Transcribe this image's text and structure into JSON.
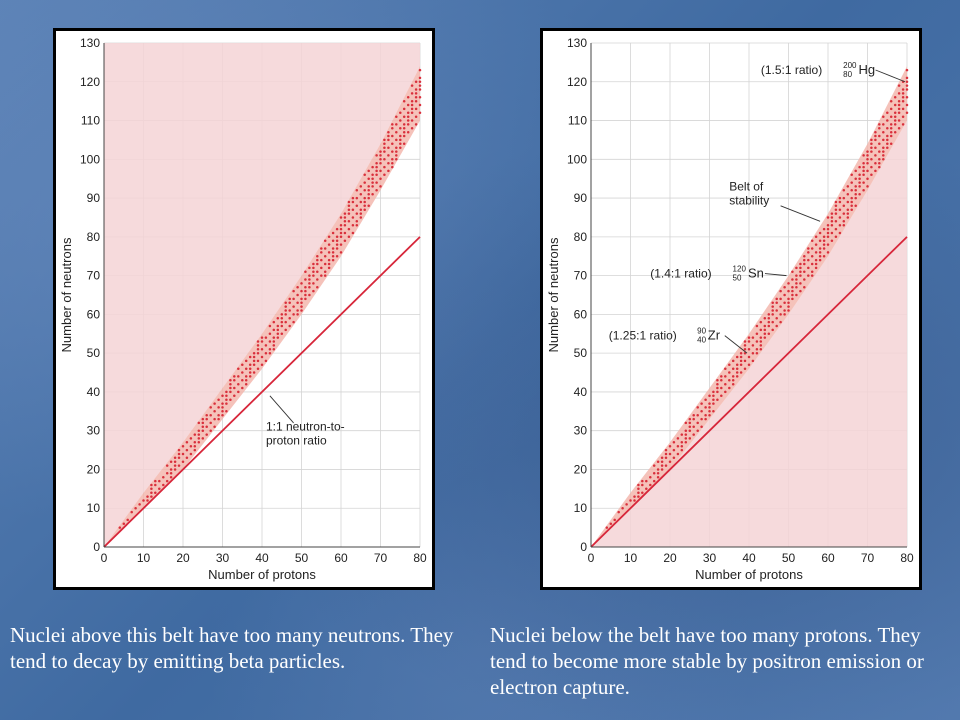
{
  "chart_data": [
    {
      "type": "scatter",
      "xlabel": "Number of protons",
      "ylabel": "Number of neutrons",
      "xlim": [
        0,
        80
      ],
      "ylim": [
        0,
        130
      ],
      "xticks": [
        0,
        10,
        20,
        30,
        40,
        50,
        60,
        70,
        80
      ],
      "yticks": [
        0,
        10,
        20,
        30,
        40,
        50,
        60,
        70,
        80,
        90,
        100,
        110,
        120,
        130
      ],
      "grid": true,
      "shaded_region": "above belt",
      "belt_of_stability": {
        "lower_edge": [
          [
            0,
            0
          ],
          [
            10,
            10
          ],
          [
            20,
            20
          ],
          [
            30,
            33
          ],
          [
            40,
            46
          ],
          [
            50,
            60
          ],
          [
            60,
            75
          ],
          [
            70,
            92
          ],
          [
            80,
            110
          ]
        ],
        "upper_edge": [
          [
            0,
            0
          ],
          [
            10,
            14
          ],
          [
            20,
            27
          ],
          [
            30,
            41
          ],
          [
            40,
            55
          ],
          [
            50,
            70
          ],
          [
            60,
            86
          ],
          [
            70,
            104
          ],
          [
            80,
            124
          ]
        ]
      },
      "reference_line": {
        "name": "1:1 neutron-to-proton ratio",
        "points": [
          [
            0,
            0
          ],
          [
            80,
            80
          ]
        ]
      },
      "annotations": [
        {
          "text_lines": [
            "1:1 neutron-to-",
            "proton ratio"
          ]
        }
      ]
    },
    {
      "type": "scatter",
      "xlabel": "Number of protons",
      "ylabel": "Number of neutrons",
      "xlim": [
        0,
        80
      ],
      "ylim": [
        0,
        130
      ],
      "xticks": [
        0,
        10,
        20,
        30,
        40,
        50,
        60,
        70,
        80
      ],
      "yticks": [
        0,
        10,
        20,
        30,
        40,
        50,
        60,
        70,
        80,
        90,
        100,
        110,
        120,
        130
      ],
      "grid": true,
      "shaded_region": "below belt",
      "belt_of_stability": {
        "lower_edge": [
          [
            0,
            0
          ],
          [
            10,
            10
          ],
          [
            20,
            20
          ],
          [
            30,
            33
          ],
          [
            40,
            46
          ],
          [
            50,
            60
          ],
          [
            60,
            75
          ],
          [
            70,
            92
          ],
          [
            80,
            110
          ]
        ],
        "upper_edge": [
          [
            0,
            0
          ],
          [
            10,
            14
          ],
          [
            20,
            27
          ],
          [
            30,
            41
          ],
          [
            40,
            55
          ],
          [
            50,
            70
          ],
          [
            60,
            86
          ],
          [
            70,
            104
          ],
          [
            80,
            124
          ]
        ]
      },
      "reference_line": {
        "points": [
          [
            0,
            0
          ],
          [
            80,
            80
          ]
        ]
      },
      "annotations": [
        {
          "ratio": "(1.5:1 ratio)",
          "mass": "200",
          "atomic": "80",
          "symbol": "Hg",
          "point": [
            80,
            120
          ]
        },
        {
          "text_lines": [
            "Belt of",
            "stability"
          ],
          "point": [
            58,
            84
          ]
        },
        {
          "ratio": "(1.4:1 ratio)",
          "mass": "120",
          "atomic": "50",
          "symbol": "Sn",
          "point": [
            50,
            70
          ]
        },
        {
          "ratio": "(1.25:1 ratio)",
          "mass": "90",
          "atomic": "40",
          "symbol": "Zr",
          "point": [
            40,
            50
          ]
        }
      ]
    }
  ],
  "captions": {
    "left": "Nuclei above this belt have too many neutrons. They tend to decay by emitting beta particles.",
    "right": "Nuclei below the belt have too many protons. They tend to become more stable by positron emission or electron capture."
  },
  "colors": {
    "region_fill": "#f5d3d6",
    "belt_fill": "#f2b3a9",
    "dots": "#d9303c",
    "ratio_line": "#d7263a",
    "grid": "#d4d4d4"
  }
}
